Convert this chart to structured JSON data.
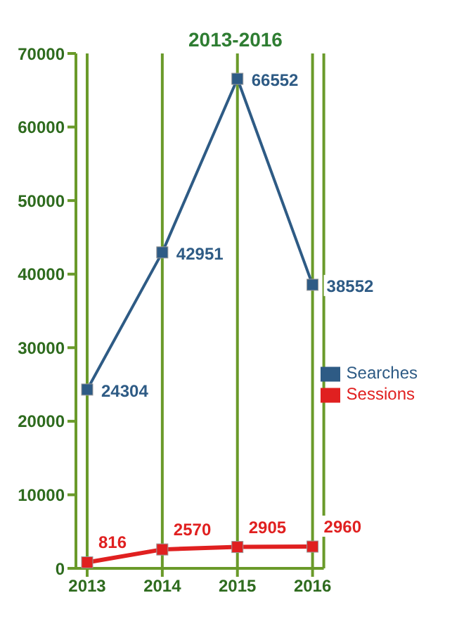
{
  "chart_data": {
    "type": "line",
    "title": "2013-2016",
    "categories": [
      "2013",
      "2014",
      "2015",
      "2016"
    ],
    "series": [
      {
        "name": "Sessions",
        "color": "#e02020",
        "values": [
          816,
          2570,
          2905,
          2960
        ]
      },
      {
        "name": "Searches",
        "color": "#2e5b85",
        "values": [
          24304,
          42951,
          66552,
          38552
        ]
      }
    ],
    "ylim": [
      0,
      70000
    ],
    "yticks": [
      0,
      10000,
      20000,
      30000,
      40000,
      50000,
      60000,
      70000
    ],
    "grid": "x",
    "legend": "right",
    "marker": "square",
    "line_style": "solid",
    "data_labels": true
  }
}
